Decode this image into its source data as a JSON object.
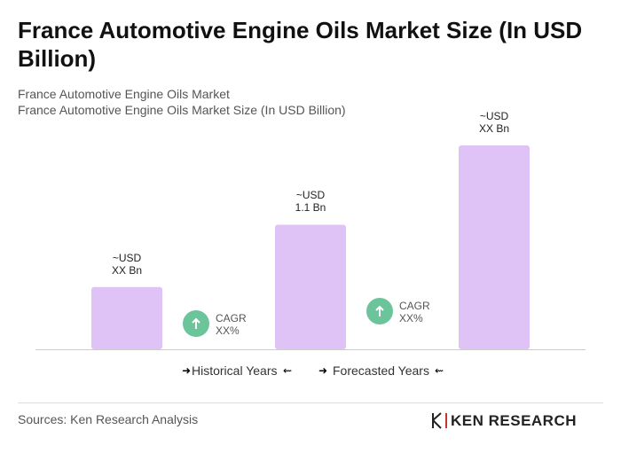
{
  "chart_data": {
    "type": "bar",
    "title": "France Automotive Engine Oils Market Size (In USD Billion)",
    "subtitle": [
      "France Automotive Engine Oils Market",
      "France Automotive Engine Oils Market Size (In USD Billion)"
    ],
    "categories": [
      null,
      null,
      null
    ],
    "values": [
      0.55,
      1.1,
      1.8
    ],
    "value_labels": [
      "~USD\nXX Bn",
      "~USD\n1.1 Bn",
      "~USD\nXX Bn"
    ],
    "color": "#dfc3f7",
    "annotations": [
      "CAGR\nXX%",
      "CAGR\nXX%"
    ],
    "legend": [
      "Historical Years",
      "Forecasted Years"
    ],
    "source": "Sources: Ken Research Analysis",
    "logo": "KEN RESEARCH"
  }
}
